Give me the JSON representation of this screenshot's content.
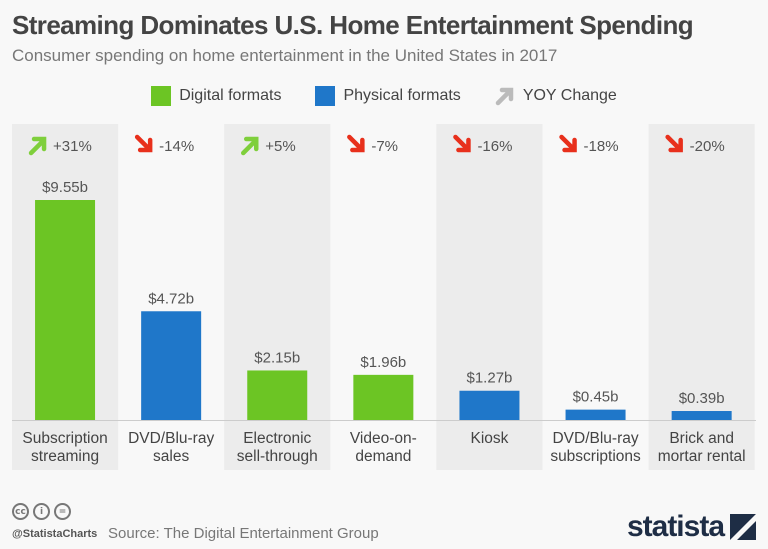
{
  "chart_data": {
    "type": "bar",
    "title": "Streaming Dominates U.S. Home Entertainment Spending",
    "subtitle": "Consumer spending on home entertainment in the United States in 2017",
    "categories": [
      "Subscription streaming",
      "DVD/Blu-ray sales",
      "Electronic sell-through",
      "Video-on-demand",
      "Kiosk",
      "DVD/Blu-ray subscriptions",
      "Brick and mortar rental"
    ],
    "category_lines": [
      [
        "Subscription",
        "streaming"
      ],
      [
        "DVD/Blu-ray",
        "sales"
      ],
      [
        "Electronic",
        "sell-through"
      ],
      [
        "Video-on-",
        "demand"
      ],
      [
        "Kiosk"
      ],
      [
        "DVD/Blu-ray",
        "subscriptions"
      ],
      [
        "Brick and",
        "mortar rental"
      ]
    ],
    "values": [
      9.55,
      4.72,
      2.15,
      1.96,
      1.27,
      0.45,
      0.39
    ],
    "value_labels": [
      "$9.55b",
      "$4.72b",
      "$2.15b",
      "$1.96b",
      "$1.27b",
      "$0.45b",
      "$0.39b"
    ],
    "format": [
      "Digital formats",
      "Physical formats",
      "Digital formats",
      "Digital formats",
      "Physical formats",
      "Physical formats",
      "Physical formats"
    ],
    "yoy_change": [
      "+31%",
      "-14%",
      "+5%",
      "-7%",
      "-16%",
      "-18%",
      "-20%"
    ],
    "unit": "billion U.S. dollars",
    "legend": [
      {
        "name": "Digital formats",
        "color": "#6cc524"
      },
      {
        "name": "Physical formats",
        "color": "#1f77c9"
      },
      {
        "name": "YOY Change",
        "color": "#bbbbbb"
      }
    ],
    "legend_placement": "top",
    "colors": {
      "Digital formats": "#6cc524",
      "Physical formats": "#1f77c9",
      "up": "#7fcf3c",
      "down": "#e8301c"
    },
    "grid": false
  },
  "footer": {
    "handle": "@StatistaCharts",
    "source": "Source: The Digital Entertainment Group",
    "logo": "statista"
  },
  "icons": [
    "cc-icon",
    "by-icon",
    "nd-icon"
  ]
}
